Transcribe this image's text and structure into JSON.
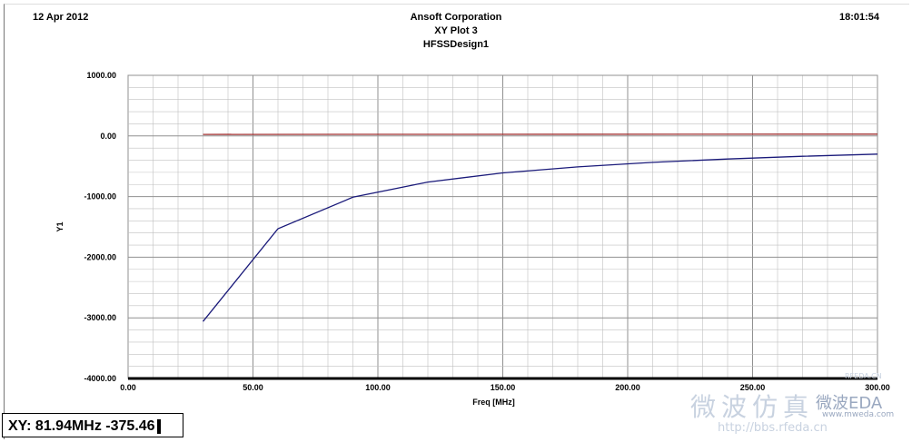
{
  "header": {
    "date": "12 Apr 2012",
    "company": "Ansoft Corporation",
    "plot_title": "XY Plot 3",
    "design": "HFSSDesign1",
    "time": "18:01:54"
  },
  "readout": {
    "text": "XY: 81.94MHz -375.46"
  },
  "watermark": {
    "site_cn": "微波仿真",
    "site_logo": "微波EDA",
    "url1": "http://bbs.rfeda.cn",
    "url2": "www.mweda.com",
    "small": "RFEDA.CN"
  },
  "colors": {
    "plot_bg": "#ffffff",
    "grid": "#c0c0c0",
    "series1": "#1a1a7a",
    "series2": "#a03030",
    "xaxis": "#000000"
  },
  "chart_data": {
    "type": "line",
    "title": "XY Plot 3",
    "xlabel": "Freq [MHz]",
    "ylabel": "Y1",
    "xlim": [
      0,
      300
    ],
    "ylim": [
      -4000,
      1000
    ],
    "x_ticks": [
      "0.00",
      "50.00",
      "100.00",
      "150.00",
      "200.00",
      "250.00",
      "300.00"
    ],
    "y_ticks": [
      "1000.00",
      "0.00",
      "-1000.00",
      "-2000.00",
      "-3000.00",
      "-4000.00"
    ],
    "x_tick_values": [
      0,
      50,
      100,
      150,
      200,
      250,
      300
    ],
    "y_tick_values": [
      1000,
      0,
      -1000,
      -2000,
      -3000,
      -4000
    ],
    "grid": true,
    "series": [
      {
        "color": "#1a1a7a",
        "x": [
          30,
          60,
          90,
          120,
          150,
          180,
          210,
          240,
          270,
          300
        ],
        "y": [
          -3060,
          -1530,
          -1010,
          -760,
          -610,
          -510,
          -435,
          -380,
          -335,
          -300
        ]
      },
      {
        "color": "#a03030",
        "x": [
          30,
          300
        ],
        "y": [
          25,
          30
        ]
      }
    ]
  }
}
